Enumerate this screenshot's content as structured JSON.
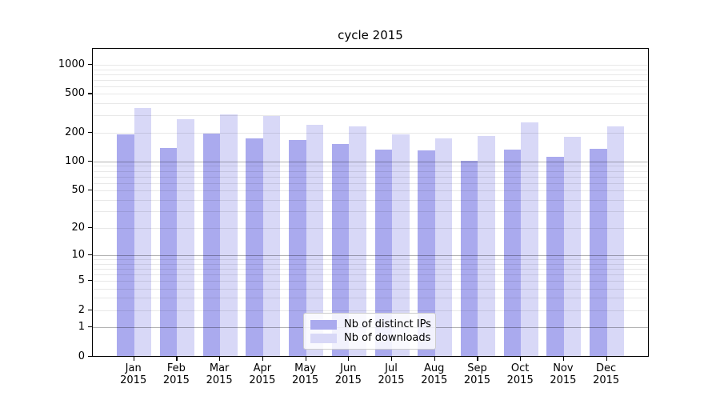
{
  "chart_data": {
    "type": "bar",
    "title": "cycle 2015",
    "xlabel": "",
    "ylabel": "",
    "y_scale": "log1p",
    "grid": true,
    "legend_position": "bottom-center",
    "categories": [
      "Jan",
      "Feb",
      "Mar",
      "Apr",
      "May",
      "Jun",
      "Jul",
      "Aug",
      "Sep",
      "Oct",
      "Nov",
      "Dec"
    ],
    "category_year": "2015",
    "y_tick_values": [
      1000,
      500,
      200,
      100,
      50,
      20,
      10,
      5,
      2,
      1,
      0
    ],
    "y_tick_labels": [
      "1000",
      "500",
      "200",
      "100",
      "50",
      "20",
      "10",
      "5",
      "2",
      "1",
      "0"
    ],
    "y_major_gridlines": [
      1,
      10,
      100
    ],
    "ylim": [
      0,
      1400
    ],
    "series": [
      {
        "name": "Nb of distinct IPs",
        "color": "#aaaaee",
        "values": [
          188,
          137,
          190,
          172,
          164,
          148,
          130,
          128,
          100,
          130,
          111,
          134
        ]
      },
      {
        "name": "Nb of downloads",
        "color": "#d8d8f7",
        "values": [
          352,
          268,
          305,
          290,
          238,
          226,
          189,
          172,
          182,
          248,
          176,
          227
        ]
      }
    ],
    "colors": {
      "axis": "#000000",
      "grid_major": "#b0b0b0",
      "grid_minor": "#e8e8e8",
      "legend_border": "#cccccc",
      "background": "#ffffff"
    }
  }
}
